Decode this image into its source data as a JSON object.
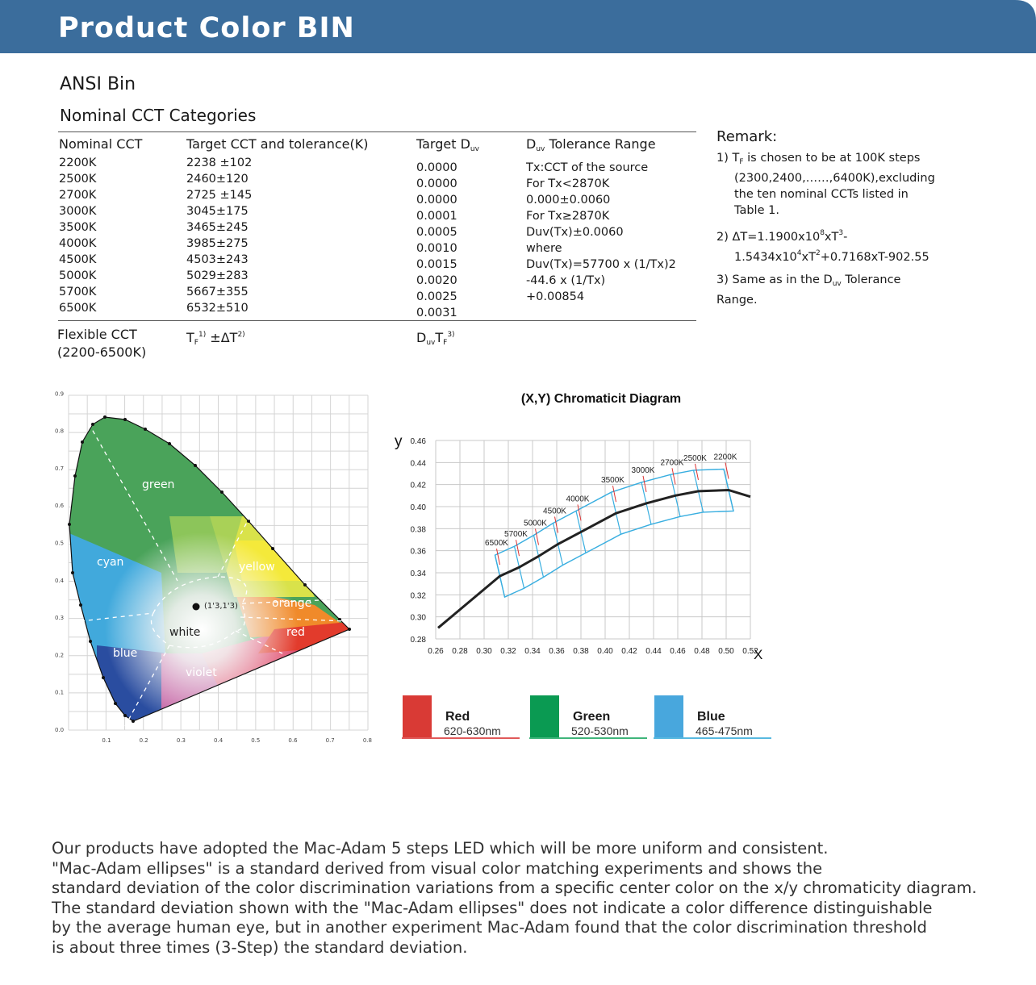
{
  "header": {
    "title": "Product Color BIN",
    "bar_color": "#3b6d9c"
  },
  "section": {
    "title": "ANSI Bin",
    "subtitle": "Nominal CCT Categories"
  },
  "table": {
    "headers": {
      "nominal": "Nominal CCT",
      "target": "Target CCT and tolerance(K)",
      "duv_main": "Target D",
      "duv_sub": "uv",
      "tol_main": "D",
      "tol_sub": "uv",
      "tol_rest": " Tolerance Range"
    },
    "nominal": [
      "2200K",
      "2500K",
      "2700K",
      "3000K",
      "3500K",
      "4000K",
      "4500K",
      "5000K",
      "5700K",
      "6500K"
    ],
    "target": [
      "2238 ±102",
      "2460±120",
      "2725 ±145",
      "3045±175",
      "3465±245",
      "3985±275",
      "4503±243",
      "5029±283",
      "5667±355",
      "6532±510"
    ],
    "duv": [
      "0.0000",
      "0.0000",
      "0.0000",
      "0.0001",
      "0.0005",
      "0.0010",
      "0.0015",
      "0.0020",
      "0.0025",
      "0.0031"
    ],
    "tolerance": [
      "Tx:CCT of the source",
      "For Tx<2870K",
      "0.000±0.0060",
      "For Tx≥2870K",
      "Duv(Tx)±0.0060",
      "where",
      "Duv(Tx)=57700 x (1/Tx)2",
      "          -44.6 x (1/Tx)",
      "          +0.00854"
    ],
    "flex": {
      "label1": "Flexible CCT",
      "label2": "(2200-6500K)",
      "target_t": "T",
      "target_f": "F",
      "target_sup1": "1)",
      "target_rest": " ±ΔT",
      "target_sup2": "2)",
      "duv_d": "D",
      "duv_uv": "uv",
      "duv_t": "T",
      "duv_f": "F",
      "duv_sup": "3)"
    }
  },
  "remark": {
    "title": "Remark:",
    "r1_a": "1)  T",
    "r1_sub": "F",
    "r1_b": " is chosen to be at 100K steps",
    "r1_c": "(2300,2400,……,6400K),excluding",
    "r1_d": "the ten nominal CCTs listed in",
    "r1_e": "Table 1.",
    "r2_a": "2)  ΔT=1.1900x10",
    "r2_s1": "8",
    "r2_b": "xT",
    "r2_s2": "3",
    "r2_c": "-",
    "r2_d": "1.5434x10",
    "r2_s3": "4",
    "r2_e": "xT",
    "r2_s4": "2",
    "r2_f": "+0.7168xT-902.55",
    "r3_a": "3)  Same as in the D",
    "r3_sub": "uv",
    "r3_b": " Tolerance",
    "r3_c": "Range."
  },
  "cie": {
    "x_ticks": [
      "0.1",
      "0.2",
      "0.3",
      "0.4",
      "0.5",
      "0.6",
      "0.7",
      "0.8"
    ],
    "y_ticks": [
      "0.0",
      "0.1",
      "0.2",
      "0.3",
      "0.4",
      "0.5",
      "0.6",
      "0.7",
      "0.8",
      "0.9"
    ],
    "regions": {
      "green": "green",
      "cyan": "cyan",
      "yellow": "yellow",
      "orange": "orange",
      "red": "red",
      "white": "white",
      "blue": "blue",
      "violet": "violet",
      "point": "(1'3,1'3)"
    }
  },
  "chart_data": {
    "type": "line",
    "title": "(X,Y) Chromaticit Diagram",
    "xlabel": "X",
    "ylabel": "y",
    "x_ticks": [
      "0.26",
      "0.28",
      "0.30",
      "0.32",
      "0.34",
      "0.36",
      "0.38",
      "0.40",
      "0.42",
      "0.44",
      "0.46",
      "0.48",
      "0.50",
      "0.52"
    ],
    "y_ticks": [
      "0.46",
      "0.44",
      "0.42",
      "0.40",
      "0.38",
      "0.36",
      "0.34",
      "0.32",
      "0.30",
      "0.28"
    ],
    "xlim": [
      0.26,
      0.52
    ],
    "ylim": [
      0.28,
      0.46
    ],
    "points": [
      {
        "name": "6500K",
        "x": 0.313,
        "y": 0.337
      },
      {
        "name": "5700K",
        "x": 0.329,
        "y": 0.345
      },
      {
        "name": "5000K",
        "x": 0.345,
        "y": 0.355
      },
      {
        "name": "4500K",
        "x": 0.361,
        "y": 0.366
      },
      {
        "name": "4000K",
        "x": 0.38,
        "y": 0.377
      },
      {
        "name": "3500K",
        "x": 0.409,
        "y": 0.394
      },
      {
        "name": "3000K",
        "x": 0.434,
        "y": 0.403
      },
      {
        "name": "2700K",
        "x": 0.458,
        "y": 0.41
      },
      {
        "name": "2500K",
        "x": 0.477,
        "y": 0.414
      },
      {
        "name": "2200K",
        "x": 0.502,
        "y": 0.415
      }
    ]
  },
  "legend": [
    {
      "name": "Red",
      "range": "620-630nm",
      "color": "#d93a35",
      "line": "#e05a5a"
    },
    {
      "name": "Green",
      "range": "520-530nm",
      "color": "#0a9a52",
      "line": "#3fb57b"
    },
    {
      "name": "Blue",
      "range": "465-475nm",
      "color": "#48a7dd",
      "line": "#58b9e0"
    }
  ],
  "paragraph": [
    "Our products have adopted the Mac-Adam 5 steps LED which will be more uniform and consistent.",
    "\"Mac-Adam ellipses\" is a standard derived from visual color matching experiments and shows the",
    "standard deviation of the color discrimination variations from a specific center color on the x/y chromaticity diagram.",
    "The standard deviation shown with the \"Mac-Adam ellipses\" does not indicate a color difference distinguishable",
    "by the average human eye, but in another experiment Mac-Adam found that the color discrimination threshold",
    "is about three times (3-Step) the standard deviation."
  ]
}
